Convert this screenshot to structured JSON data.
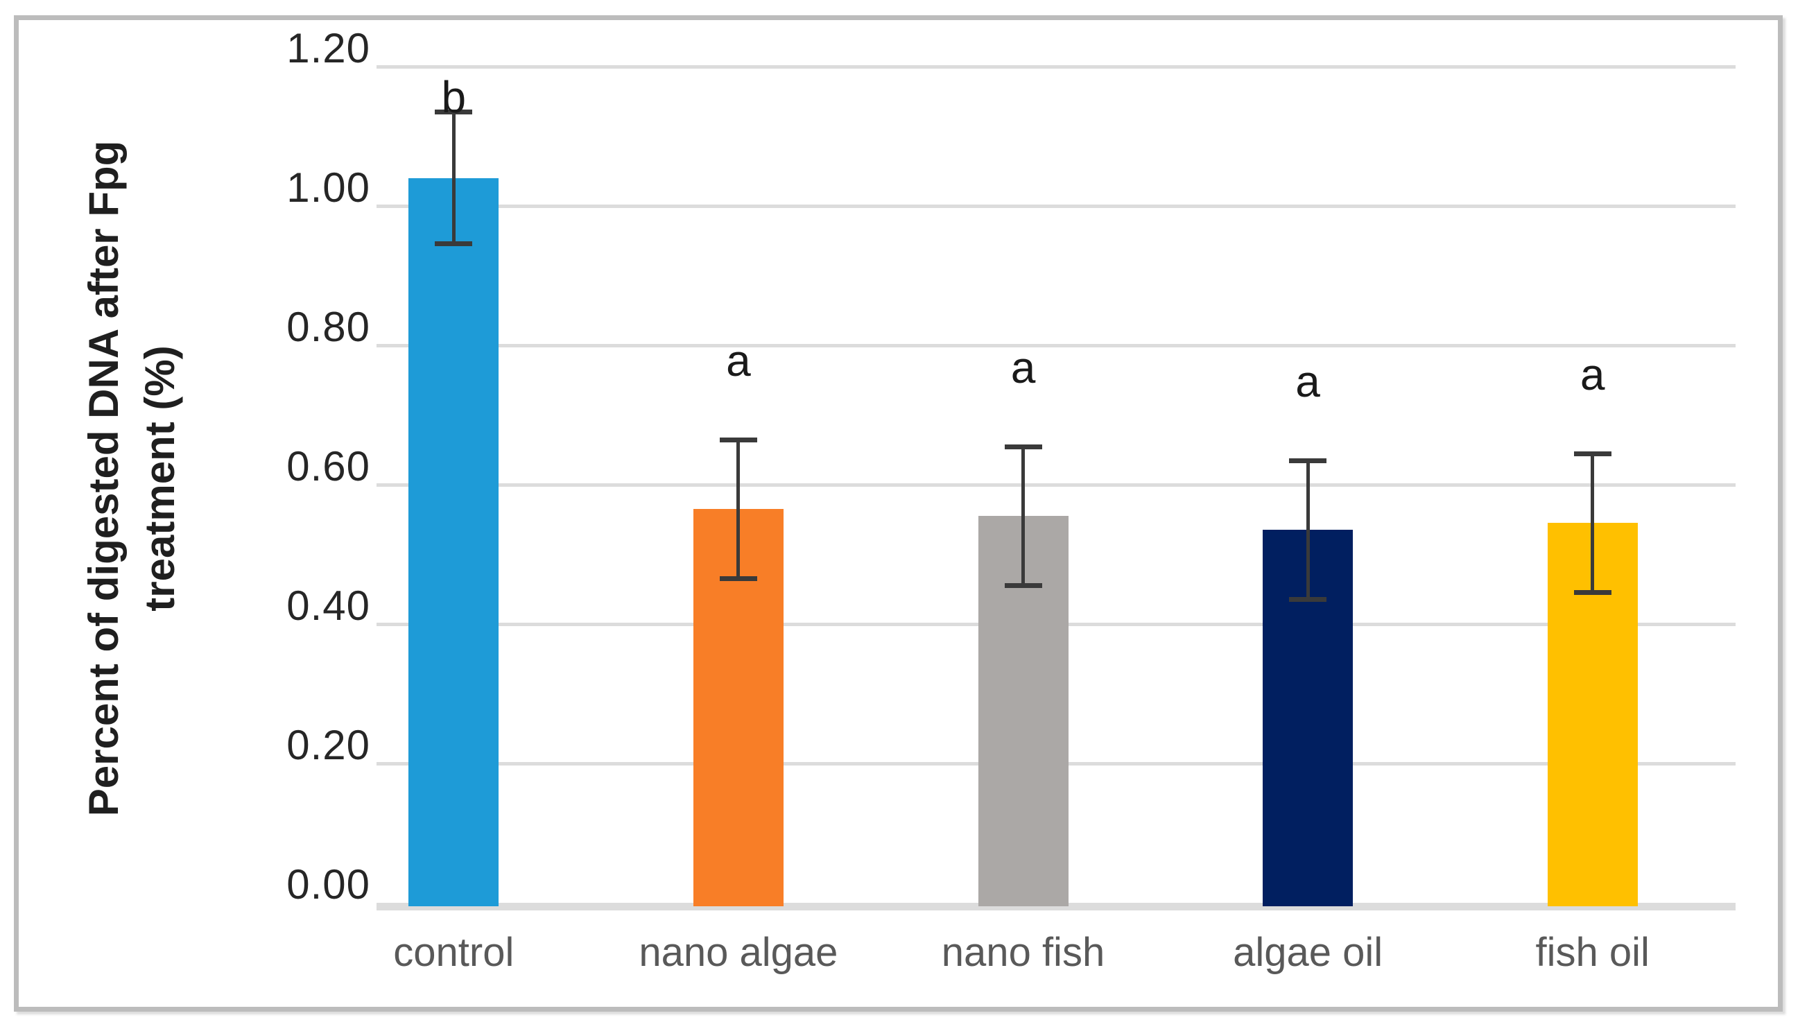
{
  "figure": {
    "background": "#ffffff",
    "frame_border_color": "#bcbcbc"
  },
  "chart_data": {
    "type": "bar",
    "title": "",
    "xlabel": "",
    "ylabel": "Percent of digested DNA after Fpg treatment (%)",
    "ylabel_lines": [
      "Percent of digested DNA after Fpg",
      "treatment (%)"
    ],
    "categories": [
      "control",
      "nano algae",
      "nano fish",
      "algae oil",
      "fish oil"
    ],
    "values": [
      1.04,
      0.565,
      0.555,
      0.535,
      0.545
    ],
    "errors": [
      0.095,
      0.1,
      0.1,
      0.1,
      0.1
    ],
    "significance_letters": [
      "b",
      "a",
      "a",
      "a",
      "a"
    ],
    "bar_colors": [
      "#1e9bd7",
      "#f87e27",
      "#aba8a6",
      "#011f60",
      "#ffc000"
    ],
    "ylim": [
      0.0,
      1.2
    ],
    "ytick_step": 0.2,
    "ytick_labels": [
      "0.00",
      "0.20",
      "0.40",
      "0.60",
      "0.80",
      "1.00",
      "1.20"
    ],
    "grid": "horizontal",
    "gridline_color": "#dcdcdc",
    "error_bar_color": "#3a3a3a",
    "tick_label_color": "#262626",
    "category_label_color": "#595959",
    "legend": "none"
  }
}
